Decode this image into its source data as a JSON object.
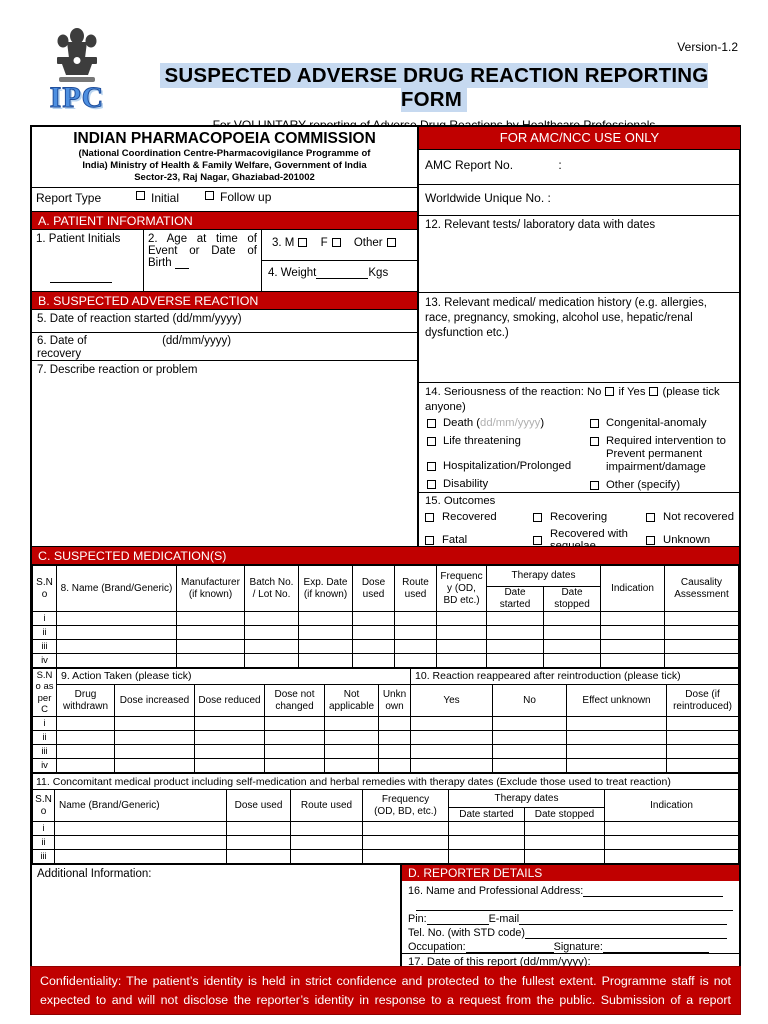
{
  "header": {
    "version": "Version-1.2",
    "title": "SUSPECTED ADVERSE DRUG REACTION REPORTING FORM",
    "subtitle": "For VOLUNTARY reporting of Adverse Drug Reactions by Healthcare Professionals",
    "logo_text": "IPC"
  },
  "colors": {
    "band_red": "#c00000",
    "title_highlight": "#c6d9f0",
    "ipc_blue": "#4d8fe0",
    "hint_gray": "#b0b0b0"
  },
  "org": {
    "name": "INDIAN PHARMACOPOEIA COMMISSION",
    "address_lines": [
      "(National Coordination Centre-Pharmacovigilance Programme of",
      "India) Ministry of Health & Family Welfare, Government of India",
      "Sector-23, Raj Nagar, Ghaziabad-201002"
    ]
  },
  "report_type": {
    "label": "Report Type",
    "initial": "Initial",
    "follow_up": "Follow up"
  },
  "amc": {
    "band": "FOR AMC/NCC USE ONLY",
    "report_no": "AMC Report No.",
    "colon": ":",
    "worldwide": "Worldwide Unique No. :"
  },
  "section_a": {
    "band": "A. PATIENT INFORMATION",
    "q1": "1. Patient Initials",
    "q2": "2. Age at time of Event or Date of Birth",
    "q3_prefix": "3.",
    "q3_m": "M",
    "q3_f": "F",
    "q3_other": "Other",
    "q4_label": "4. Weight",
    "q4_unit": "Kgs"
  },
  "section_b": {
    "band": "B. SUSPECTED ADVERSE REACTION",
    "q5": "5. Date of reaction started (dd/mm/yyyy)",
    "q6_label": "6. Date of",
    "q6_hint": "(dd/mm/yyyy)",
    "q6_label2": "recovery",
    "q7": "7. Describe reaction or problem"
  },
  "right_col": {
    "q12": "12. Relevant tests/ laboratory data with dates",
    "q13": "13. Relevant medical/ medication history (e.g. allergies, race, pregnancy, smoking, alcohol use, hepatic/renal dysfunction etc.)",
    "q14": {
      "intro": "14. Seriousness of the reaction: No",
      "if_yes": "if Yes",
      "note": "(please tick anyone)",
      "death_pre": "Death (",
      "death_hint": "dd/mm/yyyy",
      "death_post": ")",
      "life": "Life threatening",
      "hosp": "Hospitalization/Prolonged",
      "disability": "Disability",
      "congenital": "Congenital-anomaly",
      "required": "Required intervention to Prevent permanent impairment/damage",
      "other": "Other (specify)"
    },
    "q15": {
      "title": "15. Outcomes",
      "recovered": "Recovered",
      "recovering": "Recovering",
      "not_recovered": "Not recovered",
      "fatal": "Fatal",
      "sequelae": "Recovered with sequelae",
      "unknown": "Unknown"
    }
  },
  "table_c": {
    "band": "C. SUSPECTED MEDICATION(S)",
    "h_sno": "S.No",
    "h_name": "8. Name (Brand/Generic)",
    "h_manufacturer": "Manufacturer (if known)",
    "h_batch": "Batch No. / Lot No.",
    "h_exp": "Exp. Date (if known)",
    "h_dose": "Dose used",
    "h_route": "Route used",
    "h_freq": "Frequency (OD, BD etc.)",
    "h_therapy": "Therapy dates",
    "h_started": "Date started",
    "h_stopped": "Date stopped",
    "h_indication": "Indication",
    "h_causality": "Causality Assessment",
    "row_labels": [
      "i",
      "ii",
      "iii",
      "iv"
    ]
  },
  "table_910": {
    "h_sno": "S.No as per C",
    "q9_title": "9. Action Taken (please tick)",
    "q9_cols": [
      "Drug withdrawn",
      "Dose increased",
      "Dose reduced",
      "Dose not changed",
      "Not applicable",
      "Unknown"
    ],
    "q10_title": "10. Reaction reappeared after reintroduction (please tick)",
    "q10_cols": [
      "Yes",
      "No",
      "Effect unknown",
      "Dose (if reintroduced)"
    ],
    "row_labels": [
      "i",
      "ii",
      "iii",
      "iv"
    ]
  },
  "table_11": {
    "title": "11. Concomitant medical product including self-medication and herbal remedies with therapy dates (Exclude those used to treat reaction)",
    "h_sno": "S.No",
    "h_name": "Name (Brand/Generic)",
    "h_dose": "Dose used",
    "h_route": "Route used",
    "h_freq_1": "Frequency",
    "h_freq_2": "(OD, BD, etc.)",
    "h_therapy": "Therapy dates",
    "h_started": "Date started",
    "h_stopped": "Date stopped",
    "h_indication": "Indication",
    "row_labels": [
      "i",
      "ii",
      "iii"
    ]
  },
  "bottom": {
    "additional": "Additional Information:",
    "d_band": "D. REPORTER DETAILS",
    "q16": "16. Name and Professional Address:",
    "pin": "Pin:",
    "email": "E-mail",
    "tel": "Tel. No. (with STD code)",
    "occupation": "Occupation:",
    "signature": "Signature:",
    "q17": "17. Date of this report (dd/mm/yyyy):"
  },
  "confidentiality": "Confidentiality: The patient’s identity is held in strict confidence and protected to the fullest extent. Programme staff is not expected to and will not disclose the reporter’s identity in response to a request from the public. Submission of a report"
}
